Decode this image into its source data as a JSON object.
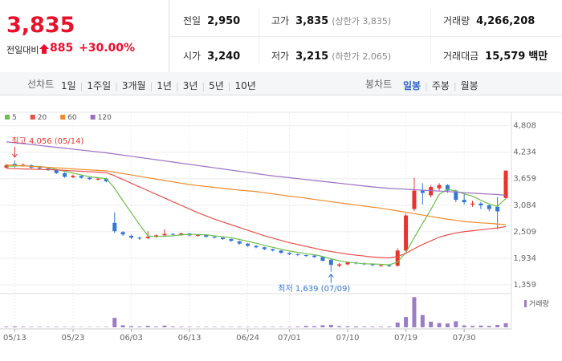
{
  "header": {
    "price": "3,835",
    "change_label": "전일대비",
    "change": "885",
    "change_pct": "+30.00%",
    "stats": [
      {
        "label": "전일",
        "value": "2,950"
      },
      {
        "label": "고가",
        "value": "3,835",
        "sub": "(상한가 3,835)"
      },
      {
        "label": "거래량",
        "value": "4,266,208"
      },
      {
        "label": "시가",
        "value": "3,240"
      },
      {
        "label": "저가",
        "value": "3,215",
        "sub": "(하한가 2,065)"
      },
      {
        "label": "거래대금",
        "value": "15,579",
        "unit": "백만"
      }
    ]
  },
  "tabs": {
    "line_label": "선차트",
    "periods": [
      "1일",
      "1주일",
      "3개월",
      "1년",
      "3년",
      "5년",
      "10년"
    ],
    "candle_label": "봉차트",
    "candle_periods": [
      "일봉",
      "주봉",
      "월봉"
    ]
  },
  "chart_data": {
    "type": "candlestick",
    "categories": [
      null,
      "05/13",
      null,
      null,
      null,
      null,
      null,
      null,
      "05/23",
      null,
      null,
      null,
      null,
      null,
      null,
      "06/03",
      null,
      null,
      null,
      null,
      null,
      null,
      "06/13",
      null,
      null,
      null,
      null,
      null,
      null,
      "06/24",
      null,
      null,
      null,
      null,
      "07/01",
      null,
      null,
      null,
      null,
      null,
      null,
      "07/10",
      null,
      null,
      null,
      null,
      null,
      null,
      "07/19",
      null,
      null,
      null,
      null,
      null,
      null,
      "07/30",
      null,
      null,
      null,
      null,
      null
    ],
    "open": [
      3900,
      3980,
      3940,
      3950,
      3900,
      3880,
      3850,
      3780,
      3690,
      3720,
      3680,
      3640,
      3660,
      2700,
      2500,
      2420,
      2380,
      2370,
      2400,
      2430,
      2460,
      2440,
      2470,
      2420,
      2440,
      2400,
      2380,
      2350,
      2300,
      2250,
      2200,
      2170,
      2130,
      2100,
      2050,
      2020,
      2000,
      1990,
      1960,
      1900,
      1770,
      1800,
      1840,
      1820,
      1800,
      1770,
      1780,
      1770,
      2100,
      3000,
      3400,
      3300,
      3450,
      3520,
      3400,
      3200,
      3100,
      3120,
      3080,
      3050,
      3240
    ],
    "high": [
      3980,
      4056,
      3990,
      3970,
      3920,
      3900,
      3870,
      3800,
      3750,
      3740,
      3700,
      3680,
      3680,
      2930,
      2520,
      2440,
      2400,
      2520,
      2450,
      2560,
      2480,
      2490,
      2480,
      2450,
      2450,
      2420,
      2390,
      2360,
      2310,
      2260,
      2220,
      2180,
      2140,
      2110,
      2060,
      2030,
      2010,
      2000,
      1970,
      1920,
      1830,
      1860,
      1860,
      1840,
      1810,
      1800,
      1790,
      2150,
      2900,
      3680,
      3560,
      3520,
      3560,
      3540,
      3420,
      3350,
      3180,
      3150,
      3100,
      3260,
      3835
    ],
    "low": [
      3880,
      3900,
      3920,
      3880,
      3860,
      3830,
      3760,
      3680,
      3670,
      3660,
      3630,
      3620,
      3580,
      2480,
      2420,
      2350,
      2330,
      2350,
      2380,
      2410,
      2420,
      2420,
      2400,
      2400,
      2380,
      2360,
      2330,
      2290,
      2230,
      2180,
      2150,
      2110,
      2080,
      2030,
      2000,
      1980,
      1960,
      1940,
      1860,
      1639,
      1740,
      1780,
      1800,
      1780,
      1760,
      1750,
      1740,
      1750,
      2080,
      2960,
      3100,
      3250,
      3400,
      3350,
      3150,
      3100,
      3050,
      3000,
      2950,
      2560,
      3215
    ],
    "close": [
      3950,
      3930,
      3960,
      3900,
      3880,
      3850,
      3780,
      3700,
      3720,
      3680,
      3650,
      3660,
      3600,
      2520,
      2450,
      2380,
      2360,
      2400,
      2430,
      2460,
      2450,
      2470,
      2430,
      2440,
      2400,
      2380,
      2350,
      2310,
      2250,
      2200,
      2170,
      2130,
      2100,
      2050,
      2020,
      2000,
      1990,
      1960,
      1880,
      1790,
      1800,
      1840,
      1820,
      1800,
      1790,
      1780,
      1760,
      2100,
      2860,
      3400,
      3350,
      3480,
      3520,
      3400,
      3200,
      3150,
      3120,
      3080,
      3000,
      2950,
      3835
    ],
    "up_color": "#e8322b",
    "down_color": "#3476d8",
    "ma": [
      {
        "name": "5",
        "color": "#6cbf4a",
        "values": [
          3930,
          3935,
          3940,
          3930,
          3925,
          3900,
          3860,
          3820,
          3780,
          3740,
          3700,
          3680,
          3660,
          3450,
          3180,
          2920,
          2660,
          2420,
          2400,
          2410,
          2420,
          2440,
          2450,
          2450,
          2440,
          2420,
          2400,
          2380,
          2340,
          2300,
          2260,
          2210,
          2170,
          2130,
          2090,
          2060,
          2030,
          2010,
          1970,
          1920,
          1880,
          1850,
          1830,
          1810,
          1810,
          1800,
          1790,
          1850,
          2060,
          2380,
          2690,
          2990,
          3320,
          3430,
          3390,
          3330,
          3280,
          3190,
          3110,
          3060,
          3230
        ]
      },
      {
        "name": "20",
        "color": "#e8504a",
        "values": [
          3880,
          3875,
          3870,
          3865,
          3860,
          3855,
          3850,
          3840,
          3830,
          3820,
          3810,
          3800,
          3790,
          3720,
          3640,
          3560,
          3480,
          3400,
          3320,
          3240,
          3160,
          3080,
          3000,
          2920,
          2850,
          2780,
          2720,
          2660,
          2600,
          2540,
          2480,
          2420,
          2370,
          2320,
          2270,
          2230,
          2190,
          2150,
          2110,
          2080,
          2050,
          2020,
          2000,
          1980,
          1960,
          1950,
          1940,
          1970,
          2040,
          2140,
          2230,
          2310,
          2390,
          2440,
          2480,
          2510,
          2530,
          2550,
          2570,
          2590,
          2620
        ]
      },
      {
        "name": "60",
        "color": "#f08c2c",
        "values": [
          3960,
          3950,
          3940,
          3925,
          3915,
          3905,
          3895,
          3885,
          3870,
          3860,
          3850,
          3840,
          3830,
          3800,
          3770,
          3740,
          3710,
          3680,
          3650,
          3620,
          3590,
          3560,
          3530,
          3510,
          3490,
          3470,
          3450,
          3430,
          3410,
          3395,
          3380,
          3355,
          3330,
          3305,
          3280,
          3260,
          3235,
          3210,
          3185,
          3160,
          3135,
          3110,
          3090,
          3065,
          3040,
          3020,
          2990,
          2960,
          2930,
          2900,
          2870,
          2840,
          2810,
          2780,
          2755,
          2730,
          2715,
          2700,
          2690,
          2675,
          2660
        ]
      },
      {
        "name": "120",
        "color": "#9c6fc4",
        "values": [
          4460,
          4440,
          4420,
          4400,
          4380,
          4360,
          4340,
          4320,
          4300,
          4280,
          4260,
          4240,
          4220,
          4195,
          4170,
          4145,
          4120,
          4095,
          4070,
          4045,
          4020,
          3995,
          3970,
          3945,
          3920,
          3895,
          3870,
          3845,
          3820,
          3795,
          3770,
          3745,
          3720,
          3700,
          3680,
          3660,
          3640,
          3620,
          3600,
          3580,
          3560,
          3540,
          3520,
          3500,
          3480,
          3465,
          3450,
          3440,
          3430,
          3420,
          3410,
          3400,
          3390,
          3380,
          3370,
          3355,
          3345,
          3335,
          3325,
          3315,
          3300
        ]
      }
    ],
    "ylim": [
      1200,
      4960
    ],
    "yticks": [
      {
        "value": 4808,
        "label": "4,808"
      },
      {
        "value": 4234,
        "label": "4,234"
      },
      {
        "value": 3659,
        "label": "3,659"
      },
      {
        "value": 3084,
        "label": "3,084"
      },
      {
        "value": 2509,
        "label": "2,509"
      },
      {
        "value": 1934,
        "label": "1,934"
      },
      {
        "value": 1359,
        "label": "1,359"
      }
    ],
    "high_label": "최고 4,056 (05/14)",
    "low_label": "최저 1,639 (07/09)",
    "volume": {
      "name": "거래량",
      "color": "#9c7cc8",
      "ylim": [
        0,
        34000000
      ],
      "values": [
        700000,
        900000,
        600000,
        500000,
        500000,
        400000,
        500000,
        400000,
        400000,
        300000,
        300000,
        300000,
        400000,
        10000000,
        2200000,
        1200000,
        800000,
        1500000,
        700000,
        1800000,
        700000,
        600000,
        500000,
        400000,
        400000,
        400000,
        400000,
        400000,
        500000,
        400000,
        400000,
        500000,
        500000,
        400000,
        500000,
        700000,
        1500000,
        1200000,
        2200000,
        2600000,
        1200000,
        1000000,
        900000,
        700000,
        600000,
        600000,
        700000,
        5000000,
        11000000,
        32000000,
        13000000,
        6000000,
        4500000,
        4000000,
        6500000,
        2000000,
        1500000,
        1800000,
        1500000,
        2500000,
        4266208
      ]
    }
  }
}
